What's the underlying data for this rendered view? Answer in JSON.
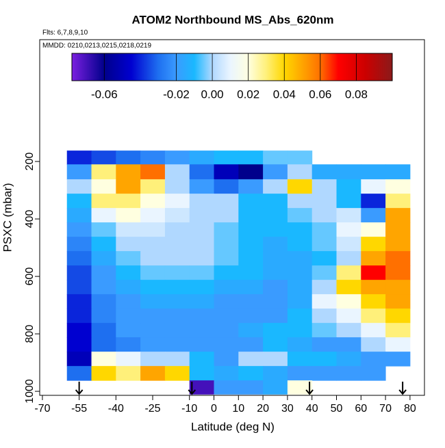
{
  "chart_data": {
    "type": "heatmap",
    "title": "ATOM2 Northbound MS_Abs_620nm",
    "subtitle": "Flts: 6,7,8,9,10",
    "annotation": "MMDD: 0210,0213,0215,0218,0219",
    "xlabel": "Latitude (deg N)",
    "ylabel": "PSXC (mbar)",
    "xlim": [
      -71.1,
      85.9
    ],
    "ylim": [
      1014,
      -224
    ],
    "xticks": [
      -70,
      -55,
      -40,
      -25,
      -10,
      0,
      10,
      20,
      30,
      40,
      50,
      60,
      70,
      80
    ],
    "yticks": [
      200,
      400,
      600,
      800,
      1000
    ],
    "x_edges": [
      -60,
      -50,
      -40,
      -30,
      -20,
      -10,
      0,
      10,
      20,
      30,
      40,
      50,
      60,
      70,
      80
    ],
    "y_edges": [
      162,
      210,
      262,
      312,
      362,
      412,
      462,
      512,
      562,
      612,
      662,
      712,
      762,
      812,
      862,
      912,
      962,
      1010
    ],
    "values": [
      [
        -0.04,
        -0.035,
        -0.03,
        -0.025,
        -0.02,
        -0.015,
        -0.01,
        -0.01,
        -0.005,
        -0.005,
        null,
        null,
        null,
        null
      ],
      [
        -0.02,
        0.03,
        0.05,
        0.06,
        0.0,
        -0.03,
        -0.05,
        -0.06,
        -0.02,
        0.0,
        -0.015,
        -0.015,
        -0.015,
        -0.015
      ],
      [
        0.0,
        0.02,
        0.05,
        0.03,
        0.0,
        -0.02,
        -0.03,
        -0.02,
        0.0,
        0.04,
        0.0,
        -0.01,
        0.01,
        0.02
      ],
      [
        -0.01,
        0.03,
        0.03,
        0.02,
        0.01,
        0.0,
        0.0,
        -0.01,
        -0.01,
        0.0,
        0.0,
        -0.01,
        -0.04,
        0.03
      ],
      [
        -0.015,
        0.01,
        0.02,
        0.01,
        0.005,
        0.0,
        0.0,
        -0.01,
        -0.01,
        -0.005,
        0.0,
        0.005,
        -0.02,
        0.05
      ],
      [
        -0.02,
        -0.005,
        0.005,
        0.005,
        0.0,
        0.0,
        -0.005,
        -0.01,
        -0.01,
        -0.01,
        -0.005,
        0.01,
        0.02,
        0.05
      ],
      [
        -0.025,
        -0.01,
        0.0,
        0.0,
        0.0,
        0.0,
        -0.005,
        -0.01,
        -0.015,
        -0.01,
        -0.005,
        0.005,
        0.04,
        0.05
      ],
      [
        -0.03,
        -0.015,
        -0.005,
        0.0,
        0.0,
        0.0,
        -0.005,
        -0.01,
        -0.015,
        -0.015,
        -0.01,
        0.0,
        0.05,
        0.06
      ],
      [
        -0.035,
        -0.02,
        -0.01,
        -0.005,
        -0.005,
        -0.005,
        -0.01,
        -0.01,
        -0.015,
        -0.015,
        -0.005,
        0.03,
        0.07,
        0.06
      ],
      [
        -0.035,
        -0.02,
        -0.015,
        -0.01,
        -0.01,
        -0.01,
        -0.015,
        -0.015,
        -0.02,
        -0.015,
        0.0,
        0.04,
        0.05,
        0.05
      ],
      [
        -0.04,
        -0.025,
        -0.02,
        -0.015,
        -0.015,
        -0.015,
        -0.02,
        -0.02,
        -0.02,
        -0.015,
        0.01,
        0.02,
        0.04,
        0.05
      ],
      [
        -0.04,
        -0.025,
        -0.02,
        -0.02,
        -0.02,
        -0.02,
        -0.02,
        -0.02,
        -0.02,
        -0.01,
        0.0,
        0.01,
        0.03,
        0.04
      ],
      [
        -0.045,
        -0.03,
        -0.02,
        -0.02,
        -0.02,
        -0.02,
        -0.02,
        -0.015,
        -0.01,
        -0.01,
        -0.005,
        0.0,
        0.01,
        0.03
      ],
      [
        -0.045,
        -0.03,
        -0.025,
        -0.02,
        -0.02,
        -0.02,
        -0.02,
        -0.02,
        -0.01,
        -0.015,
        -0.02,
        -0.02,
        0.0,
        0.01
      ],
      [
        -0.05,
        0.02,
        0.01,
        0.0,
        0.0,
        -0.01,
        -0.02,
        0.0,
        0.0,
        -0.01,
        -0.01,
        -0.015,
        -0.02,
        -0.02
      ],
      [
        -0.03,
        0.04,
        0.03,
        0.05,
        0.04,
        -0.01,
        -0.015,
        -0.01,
        -0.015,
        -0.02,
        -0.02,
        -0.02,
        -0.02,
        null
      ],
      [
        null,
        null,
        null,
        null,
        null,
        -0.07,
        -0.02,
        -0.02,
        -0.015,
        0.02,
        null,
        null,
        null,
        null
      ]
    ],
    "clim": [
      -0.078,
      0.1
    ],
    "cticks": [
      -0.06,
      -0.02,
      {
        "value": 0,
        "label": "0.00"
      },
      0.02,
      0.04,
      0.06,
      0.08
    ],
    "colorscale": [
      [
        -0.078,
        "#7b1fe0"
      ],
      [
        -0.06,
        "#00008b"
      ],
      [
        -0.045,
        "#0000d0"
      ],
      [
        -0.03,
        "#1e6ff0"
      ],
      [
        -0.02,
        "#3a9bff"
      ],
      [
        -0.01,
        "#1ab8ff"
      ],
      [
        0.0,
        "#b0d8ff"
      ],
      [
        0.01,
        "#eaf5ff"
      ],
      [
        0.02,
        "#ffffe0"
      ],
      [
        0.03,
        "#fff07a"
      ],
      [
        0.04,
        "#ffd700"
      ],
      [
        0.05,
        "#ffa500"
      ],
      [
        0.06,
        "#ff7000"
      ],
      [
        0.07,
        "#ff0000"
      ],
      [
        0.085,
        "#cc0000"
      ],
      [
        0.1,
        "#8b1a1a"
      ]
    ],
    "arrows": [
      -55,
      -9,
      39,
      77
    ]
  }
}
